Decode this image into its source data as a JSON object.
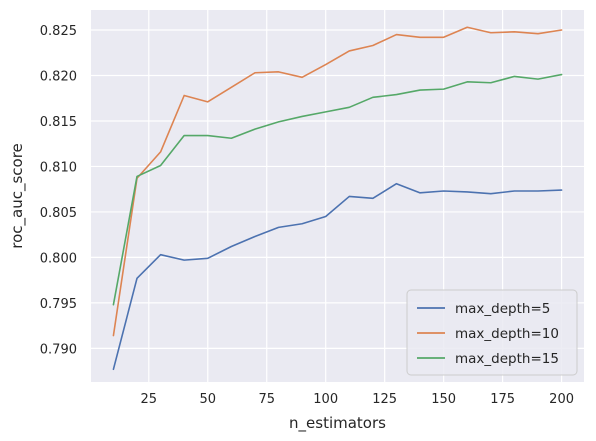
{
  "chart_data": {
    "type": "line",
    "title": "",
    "xlabel": "n_estimators",
    "ylabel": "roc_auc_score",
    "x": [
      10,
      20,
      30,
      40,
      50,
      60,
      70,
      80,
      90,
      100,
      110,
      120,
      130,
      140,
      150,
      160,
      170,
      180,
      190,
      200
    ],
    "xlim": [
      0.5,
      209.5
    ],
    "ylim": [
      0.7863,
      0.8272
    ],
    "xticks": [
      25,
      50,
      75,
      100,
      125,
      150,
      175,
      200
    ],
    "yticks": [
      0.79,
      0.795,
      0.8,
      0.805,
      0.81,
      0.815,
      0.82,
      0.825
    ],
    "xtick_labels": [
      "25",
      "50",
      "75",
      "100",
      "125",
      "150",
      "175",
      "200"
    ],
    "ytick_labels": [
      "0.790",
      "0.795",
      "0.800",
      "0.805",
      "0.810",
      "0.815",
      "0.820",
      "0.825"
    ],
    "grid": true,
    "legend_position": "bottom-right",
    "background_color": "#eaeaf2",
    "grid_color": "#ffffff",
    "series": [
      {
        "name": "max_depth=5",
        "color": "#4c72b0",
        "values": [
          0.7877,
          0.7977,
          0.8003,
          0.7997,
          0.7999,
          0.8012,
          0.8023,
          0.8033,
          0.8037,
          0.8045,
          0.8067,
          0.8065,
          0.8081,
          0.8071,
          0.8073,
          0.8072,
          0.807,
          0.8073,
          0.8073,
          0.8074
        ]
      },
      {
        "name": "max_depth=10",
        "color": "#dd8452",
        "values": [
          0.7914,
          0.8087,
          0.8116,
          0.8178,
          0.8171,
          0.8187,
          0.8203,
          0.8204,
          0.8198,
          0.8212,
          0.8227,
          0.8233,
          0.8245,
          0.8242,
          0.8242,
          0.8253,
          0.8247,
          0.8248,
          0.8246,
          0.825
        ]
      },
      {
        "name": "max_depth=15",
        "color": "#55a868",
        "values": [
          0.7948,
          0.8089,
          0.8101,
          0.8134,
          0.8134,
          0.8131,
          0.8141,
          0.8149,
          0.8155,
          0.816,
          0.8165,
          0.8176,
          0.8179,
          0.8184,
          0.8185,
          0.8193,
          0.8192,
          0.8199,
          0.8196,
          0.8201
        ]
      }
    ]
  }
}
